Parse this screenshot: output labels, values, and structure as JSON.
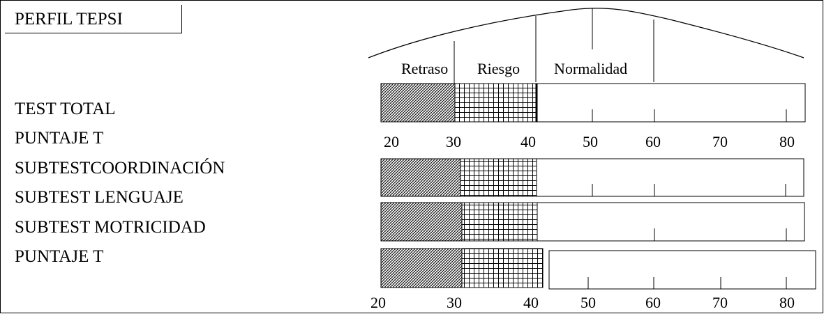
{
  "title": "PERFIL TEPSI",
  "row_labels": [
    "TEST TOTAL",
    "PUNTAJE T",
    "SUBTESTCOORDINACIÓN",
    "SUBTEST LENGUAJE",
    "SUBTEST MOTRICIDAD",
    "PUNTAJE T"
  ],
  "zones": {
    "retraso": "Retraso",
    "riesgo": "Riesgo",
    "normalidad": "Normalidad"
  },
  "scale_ticks": [
    "20",
    "30",
    "40",
    "50",
    "60",
    "70",
    "80"
  ],
  "bars": [
    {
      "name": "test-total-bar",
      "normal_ticks": [
        "50",
        "60",
        "80"
      ]
    },
    {
      "name": "subtest-coordinacion-bar",
      "normal_ticks": [
        "50",
        "60",
        "80"
      ]
    },
    {
      "name": "subtest-lenguaje-bar",
      "normal_ticks": [
        "60",
        "80"
      ]
    },
    {
      "name": "subtest-motricidad-bar",
      "normal_ticks": [
        "50",
        "60",
        "70",
        "80"
      ]
    }
  ]
}
